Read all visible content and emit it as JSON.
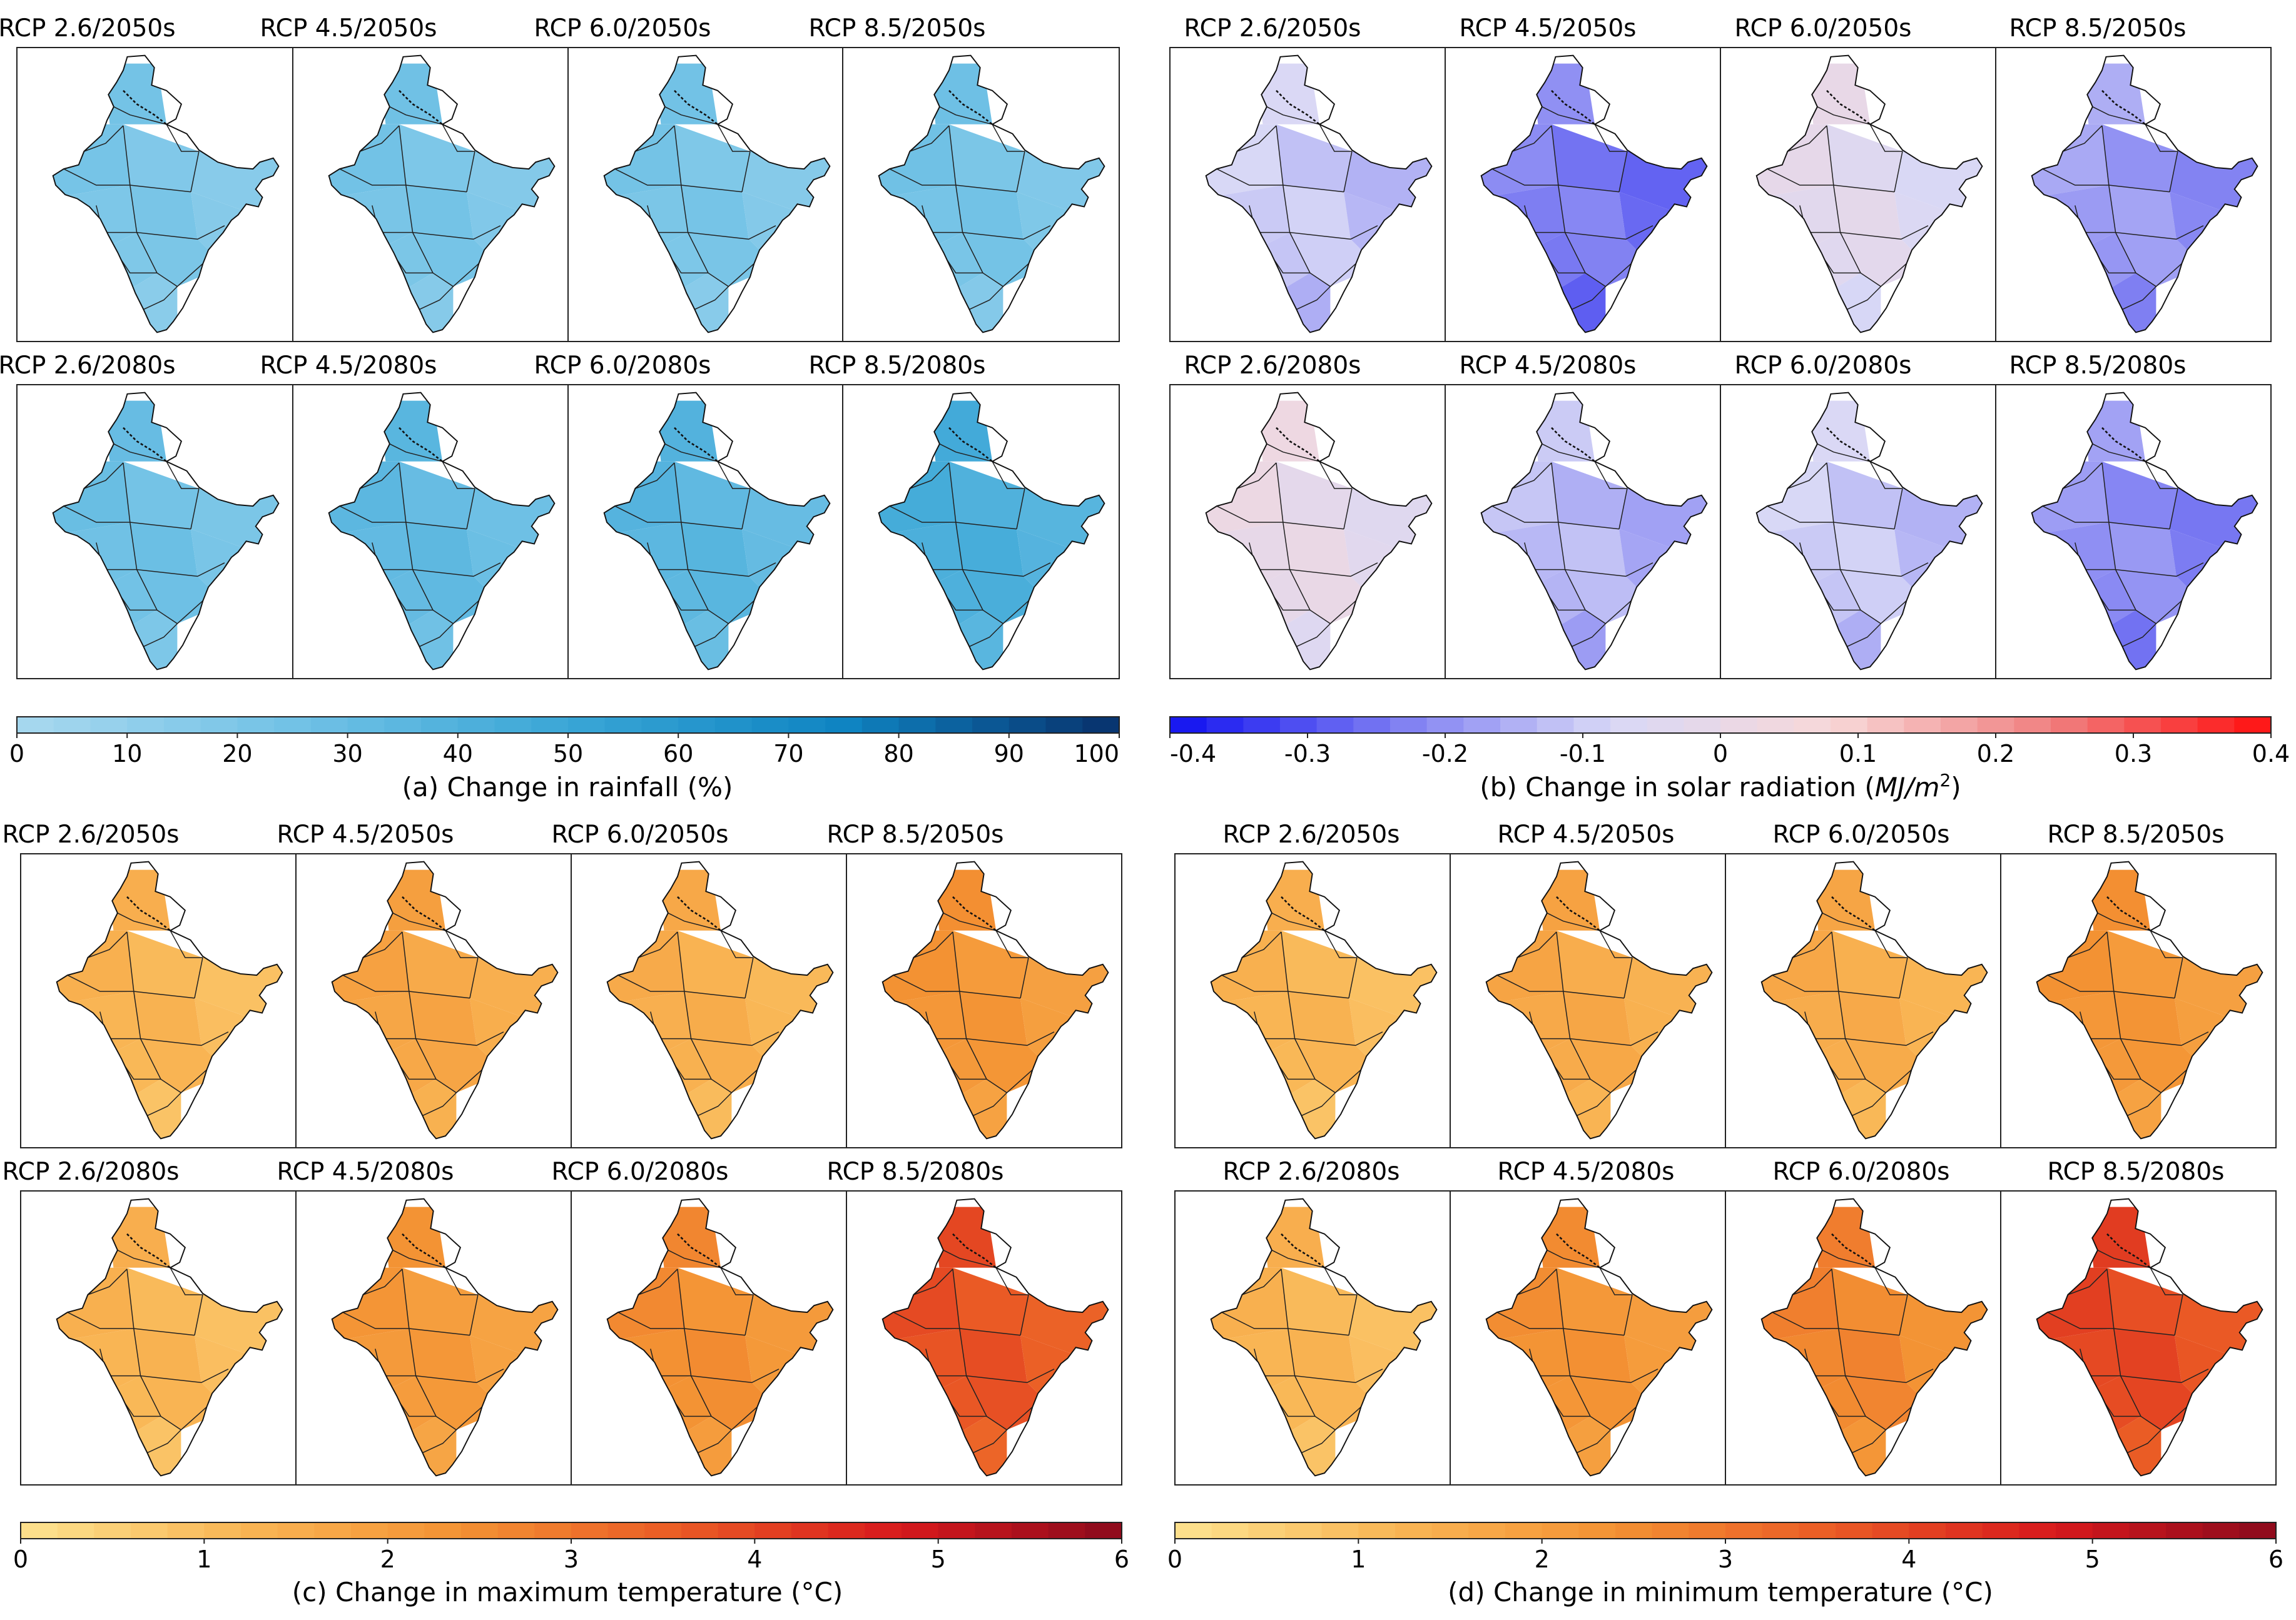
{
  "figure": {
    "periods": [
      "2050s",
      "2080s"
    ],
    "scenario_titles": [
      [
        "RCP 2.6/2050s",
        "RCP 4.5/2050s",
        "RCP 6.0/2050s",
        "RCP 8.5/2050s"
      ],
      [
        "RCP 2.6/2080s",
        "RCP 4.5/2080s",
        "RCP 6.0/2080s",
        "RCP 8.5/2080s"
      ]
    ]
  },
  "chart_data": [
    {
      "type": "choropleth-map-grid",
      "id": "a",
      "caption": "(a) Change in rainfall (%)",
      "colorbar": {
        "min": 0,
        "max": 100,
        "ticks": [
          "0",
          "10",
          "20",
          "30",
          "40",
          "50",
          "60",
          "70",
          "80",
          "90",
          "100"
        ],
        "colors": [
          "#a9d9ef",
          "#72c2e6",
          "#3aa6d6",
          "#0f84c2",
          "#08306b"
        ]
      },
      "titles": [
        [
          "RCP 2.6/2050s",
          "RCP 4.5/2050s",
          "RCP 6.0/2050s",
          "RCP 8.5/2050s"
        ],
        [
          "RCP 2.6/2080s",
          "RCP 4.5/2080s",
          "RCP 6.0/2080s",
          "RCP 8.5/2080s"
        ]
      ],
      "panel_values": [
        [
          18,
          20,
          19,
          21
        ],
        [
          24,
          30,
          33,
          40
        ]
      ]
    },
    {
      "type": "choropleth-map-grid",
      "id": "b",
      "caption": "(b) Change in solar radiation (MJ/m²)",
      "caption_main": "(b) Change in solar radiation (",
      "caption_unit": "MJ/m",
      "caption_sup": "2",
      "caption_close": ")",
      "colorbar": {
        "min": -0.4,
        "max": 0.4,
        "ticks": [
          "-0.4",
          "-0.3",
          "-0.2",
          "-0.1",
          "0",
          "0.1",
          "0.2",
          "0.3",
          "0.4"
        ],
        "colors": [
          "#1010f0",
          "#7a7af2",
          "#d8d8f6",
          "#f8d8d8",
          "#f08080",
          "#ff1010"
        ]
      },
      "titles": [
        [
          "RCP 2.6/2050s",
          "RCP 4.5/2050s",
          "RCP 6.0/2050s",
          "RCP 8.5/2050s"
        ],
        [
          "RCP 2.6/2080s",
          "RCP 4.5/2080s",
          "RCP 6.0/2080s",
          "RCP 8.5/2080s"
        ]
      ],
      "panel_values": [
        [
          -0.12,
          -0.25,
          -0.05,
          -0.2
        ],
        [
          -0.02,
          -0.15,
          -0.12,
          -0.22
        ]
      ]
    },
    {
      "type": "choropleth-map-grid",
      "id": "c",
      "caption": "(c) Change in maximum temperature (°C)",
      "colorbar": {
        "min": 0,
        "max": 6,
        "ticks": [
          "0",
          "1",
          "2",
          "3",
          "4",
          "5",
          "6"
        ],
        "colors": [
          "#fde390",
          "#f9b655",
          "#f39233",
          "#ea5a25",
          "#d7191c",
          "#8b0a1c"
        ]
      },
      "titles": [
        [
          "RCP 2.6/2050s",
          "RCP 4.5/2050s",
          "RCP 6.0/2050s",
          "RCP 8.5/2050s"
        ],
        [
          "RCP 2.6/2080s",
          "RCP 4.5/2080s",
          "RCP 6.0/2080s",
          "RCP 8.5/2080s"
        ]
      ],
      "panel_values": [
        [
          1.1,
          1.6,
          1.3,
          2.1
        ],
        [
          1.1,
          2.0,
          2.3,
          3.6
        ]
      ]
    },
    {
      "type": "choropleth-map-grid",
      "id": "d",
      "caption": "(d) Change in minimum temperature (°C)",
      "colorbar": {
        "min": 0,
        "max": 6,
        "ticks": [
          "0",
          "1",
          "2",
          "3",
          "4",
          "5",
          "6"
        ],
        "colors": [
          "#fde390",
          "#f9b655",
          "#f39233",
          "#ea5a25",
          "#d7191c",
          "#8b0a1c"
        ]
      },
      "titles": [
        [
          "RCP 2.6/2050s",
          "RCP 4.5/2050s",
          "RCP 6.0/2050s",
          "RCP 8.5/2050s"
        ],
        [
          "RCP 2.6/2080s",
          "RCP 4.5/2080s",
          "RCP 6.0/2080s",
          "RCP 8.5/2080s"
        ]
      ],
      "panel_values": [
        [
          1.1,
          1.5,
          1.4,
          2.1
        ],
        [
          1.1,
          2.2,
          2.5,
          3.8
        ]
      ]
    }
  ]
}
